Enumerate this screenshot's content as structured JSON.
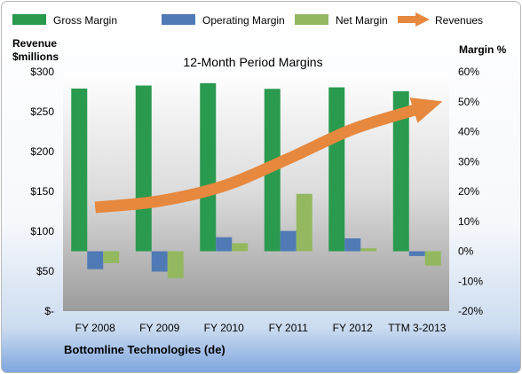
{
  "chart_data": {
    "type": "bar",
    "title": "12-Month Period Margins",
    "company": "Bottomline Technologies (de)",
    "categories": [
      "FY 2008",
      "FY 2009",
      "FY 2010",
      "FY 2011",
      "FY 2012",
      "TTM 3-2013"
    ],
    "left_axis": {
      "title_line1": "Revenue",
      "title_line2": "$millions",
      "ylim": [
        0,
        300
      ],
      "ticks": [
        "$-",
        "$50",
        "$100",
        "$150",
        "$200",
        "$250",
        "$300"
      ]
    },
    "right_axis": {
      "title": "Margin %",
      "ylim": [
        -20,
        60
      ],
      "ticks": [
        "-20%",
        "-10%",
        "0%",
        "10%",
        "20%",
        "30%",
        "40%",
        "50%",
        "60%"
      ]
    },
    "series": [
      {
        "name": "Gross Margin",
        "kind": "bar",
        "axis": "right",
        "color": "#2a9a4e",
        "values": [
          54.4,
          55.4,
          56.2,
          54.3,
          54.8,
          53.5
        ]
      },
      {
        "name": "Operating Margin",
        "kind": "bar",
        "axis": "right",
        "color": "#4f7ab5",
        "values": [
          -6.0,
          -6.8,
          4.7,
          6.8,
          4.3,
          -1.6
        ]
      },
      {
        "name": "Net Margin",
        "kind": "bar",
        "axis": "right",
        "color": "#93b85f",
        "values": [
          -4.0,
          -9.0,
          2.7,
          19.2,
          1.0,
          -4.8
        ]
      },
      {
        "name": "Revenues",
        "kind": "line",
        "axis": "left",
        "color": "#e6883e",
        "values": [
          130,
          138,
          157,
          191,
          228,
          253
        ]
      }
    ],
    "legend_position": "top",
    "grid": false
  }
}
